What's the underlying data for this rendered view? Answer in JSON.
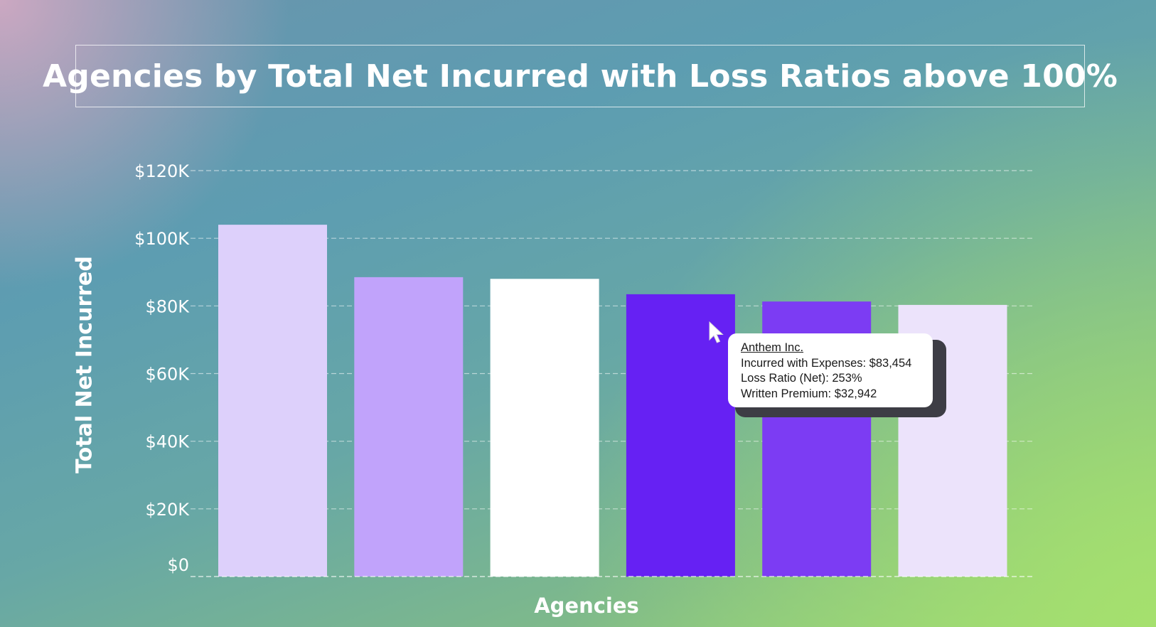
{
  "title": "Agencies by Total Net Incurred with Loss Ratios above 100%",
  "chart_data": {
    "type": "bar",
    "categories": [
      "",
      "",
      "",
      "",
      "",
      ""
    ],
    "values": [
      104000,
      88500,
      88000,
      83454,
      81300,
      80300
    ],
    "bar_colors": [
      "#ddd0fb",
      "#c1a3fb",
      "#ffffff",
      "#6621f3",
      "#7c3cf3",
      "#ece3fb"
    ],
    "xlabel": "Agencies",
    "ylabel": "Total Net Incurred",
    "ylim": [
      0,
      120000
    ],
    "y_ticks": [
      0,
      20000,
      40000,
      60000,
      80000,
      100000,
      120000
    ],
    "y_tick_labels": [
      "$0",
      "$20K",
      "$40K",
      "$60K",
      "$80K",
      "$100K",
      "$120K"
    ],
    "grid": true,
    "legend": "none"
  },
  "tooltip": {
    "title": "Anthem Inc.",
    "lines": [
      "Incurred with Expenses: $83,454",
      "Loss Ratio (Net): 253%",
      "Written Premium: $32,942"
    ]
  },
  "cursor": "arrow-pointer-icon"
}
